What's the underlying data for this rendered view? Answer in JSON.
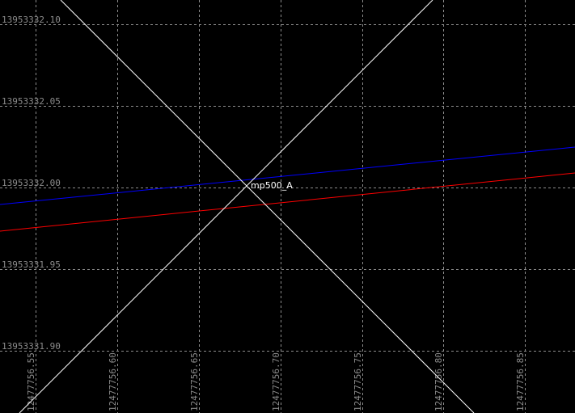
{
  "view": {
    "colors": {
      "background": "#000000",
      "grid": "#8c8c8c",
      "axis_labels": "#8c8c8c",
      "crosshair": "#ffffff",
      "line_blue": "#0000ff",
      "line_red": "#ff0000",
      "point_label": "#ffffff"
    },
    "y_ticks": [
      "13953332.10",
      "13953332.05",
      "13953332.00",
      "13953331.95",
      "13953331.90"
    ],
    "x_ticks": [
      "12477756.55",
      "12477756.60",
      "12477756.65",
      "12477756.70",
      "12477756.75",
      "12477756.80",
      "12477756.85"
    ],
    "point": {
      "label": "mp500_A"
    }
  }
}
